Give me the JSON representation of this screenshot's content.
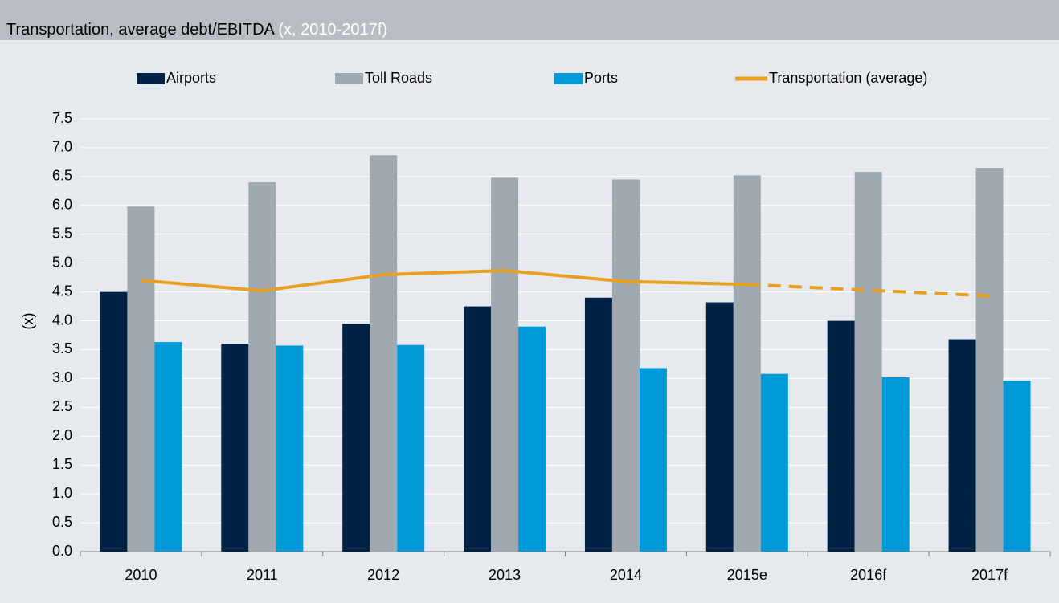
{
  "chart_data": {
    "type": "bar",
    "title": "Transportation, average debt/EBITDA",
    "subtitle": "(x, 2010-2017f)",
    "y_label": "(x)",
    "categories": [
      "2010",
      "2011",
      "2012",
      "2013",
      "2014",
      "2015e",
      "2016f",
      "2017f"
    ],
    "series": [
      {
        "name": "Airports",
        "type": "bar",
        "color": "#002245",
        "values": [
          4.5,
          3.6,
          3.95,
          4.25,
          4.4,
          4.32,
          4.0,
          3.68
        ]
      },
      {
        "name": "Toll Roads",
        "type": "bar",
        "color": "#a0a9b0",
        "values": [
          5.98,
          6.4,
          6.87,
          6.48,
          6.45,
          6.52,
          6.58,
          6.65
        ]
      },
      {
        "name": "Ports",
        "type": "bar",
        "color": "#009ad9",
        "values": [
          3.63,
          3.57,
          3.58,
          3.9,
          3.18,
          3.08,
          3.02,
          2.96
        ]
      },
      {
        "name": "Transportation (average)",
        "type": "line",
        "color": "#e8a020",
        "dashed_from": "2015e",
        "values": [
          4.7,
          4.52,
          4.8,
          4.87,
          4.68,
          4.63,
          4.53,
          4.43
        ]
      }
    ],
    "ylim": [
      0,
      7.5
    ],
    "yticks": [
      {
        "value": 0,
        "label": "0.0"
      },
      0.5,
      {
        "value": 1,
        "label": "1.0"
      },
      1.5,
      {
        "value": 2,
        "label": "2.0"
      },
      2.5,
      {
        "value": 3,
        "label": "3.0"
      },
      3.5,
      {
        "value": 4,
        "label": "4.0"
      },
      4.5,
      {
        "value": 5,
        "label": "5.0"
      },
      5.5,
      {
        "value": 6,
        "label": "6.0"
      },
      6.5,
      {
        "value": 7,
        "label": "7.0"
      },
      7.5
    ],
    "grid": true
  }
}
